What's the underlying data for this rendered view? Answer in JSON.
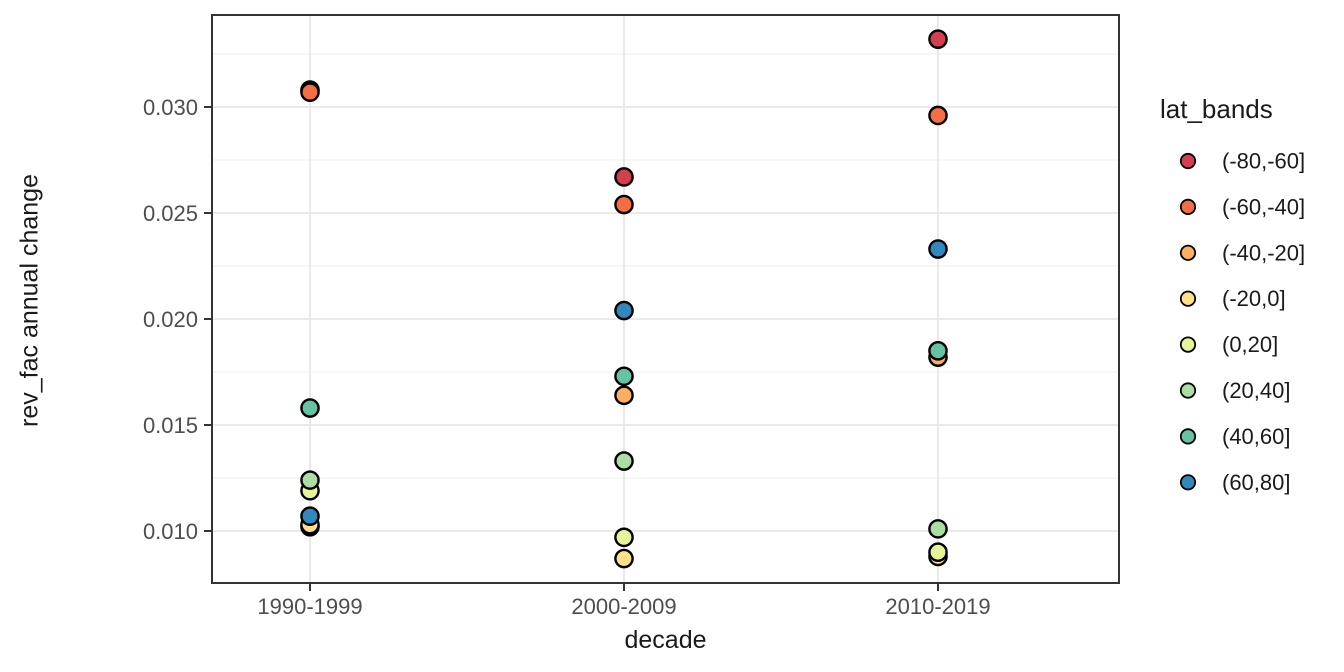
{
  "figure": {
    "background": "#ffffff",
    "panel_border_color": "#333333",
    "major_grid_color": "#e7e7e7",
    "minor_grid_color": "#f2f2f2",
    "tick_color": "#333333",
    "tick_label_color": "#4d4d4d",
    "point_outline_color": "#000000"
  },
  "chart_data": {
    "type": "scatter",
    "title": "",
    "xlabel": "decade",
    "ylabel": "rev_fac annual change",
    "legend_title": "lat_bands",
    "legend_position": "right",
    "grid": true,
    "categories": [
      "1990-1999",
      "2000-2009",
      "2010-2019"
    ],
    "y_tick_labels": [
      "0.010",
      "0.015",
      "0.020",
      "0.025",
      "0.030"
    ],
    "y_tick_values": [
      0.01,
      0.015,
      0.02,
      0.025,
      0.03
    ],
    "y_minor_gridlines": [
      0.0125,
      0.0175,
      0.0225,
      0.0275,
      0.0325
    ],
    "ylim": [
      0.0076,
      0.0343
    ],
    "series": [
      {
        "name": "(-80,-60]",
        "color": "#D53E4F",
        "values": [
          0.0308,
          0.0267,
          0.0332
        ]
      },
      {
        "name": "(-60,-40]",
        "color": "#F46D43",
        "values": [
          0.0307,
          0.0254,
          0.0296
        ]
      },
      {
        "name": "(-40,-20]",
        "color": "#FDAE61",
        "values": [
          0.0102,
          0.0164,
          0.0182
        ]
      },
      {
        "name": "(-20,0]",
        "color": "#FEE08B",
        "values": [
          0.0103,
          0.0087,
          0.0088
        ]
      },
      {
        "name": "(0,20]",
        "color": "#E6F598",
        "values": [
          0.0119,
          0.0097,
          0.009
        ]
      },
      {
        "name": "(20,40]",
        "color": "#ABDDA4",
        "values": [
          0.0124,
          0.0133,
          0.0101
        ]
      },
      {
        "name": "(40,60]",
        "color": "#66C2A5",
        "values": [
          0.0158,
          0.0173,
          0.0185
        ]
      },
      {
        "name": "(60,80]",
        "color": "#3288BD",
        "values": [
          0.0107,
          0.0204,
          0.0233
        ]
      }
    ]
  }
}
